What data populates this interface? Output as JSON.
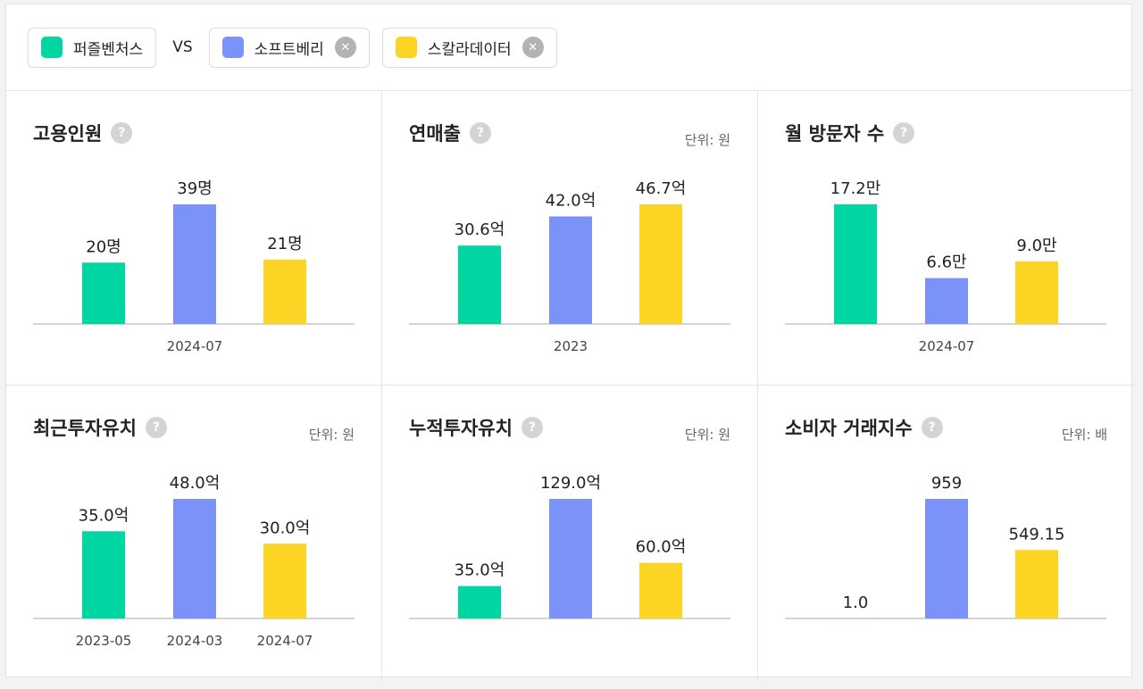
{
  "legend": {
    "items": [
      {
        "name": "퍼즐벤처스",
        "color": "#00d6a2"
      },
      {
        "name": "소프트베리",
        "color": "#7b93f8"
      },
      {
        "name": "스칼라데이터",
        "color": "#fcd424"
      }
    ],
    "separator": "VS"
  },
  "chart_data": [
    {
      "type": "bar",
      "title": "고용인원",
      "group_label": "2024-07",
      "values": [
        20,
        39,
        21
      ],
      "value_labels": [
        "20명",
        "39명",
        "21명"
      ]
    },
    {
      "type": "bar",
      "title": "연매출",
      "unit": "단위: 원",
      "group_label": "2023",
      "values": [
        30.6,
        42.0,
        46.7
      ],
      "value_labels": [
        "30.6억",
        "42.0억",
        "46.7억"
      ]
    },
    {
      "type": "bar",
      "title": "월 방문자 수",
      "group_label": "2024-07",
      "values": [
        17.2,
        6.6,
        9.0
      ],
      "value_labels": [
        "17.2만",
        "6.6만",
        "9.0만"
      ]
    },
    {
      "type": "bar",
      "title": "최근투자유치",
      "unit": "단위: 원",
      "categories": [
        "2023-05",
        "2024-03",
        "2024-07"
      ],
      "values": [
        35.0,
        48.0,
        30.0
      ],
      "value_labels": [
        "35.0억",
        "48.0억",
        "30.0억"
      ]
    },
    {
      "type": "bar",
      "title": "누적투자유치",
      "unit": "단위: 원",
      "values": [
        35.0,
        129.0,
        60.0
      ],
      "value_labels": [
        "35.0억",
        "129.0억",
        "60.0억"
      ]
    },
    {
      "type": "bar",
      "title": "소비자 거래지수",
      "unit": "단위: 배",
      "values": [
        1.0,
        959,
        549.15
      ],
      "value_labels": [
        "1.0",
        "959",
        "549.15"
      ]
    }
  ]
}
